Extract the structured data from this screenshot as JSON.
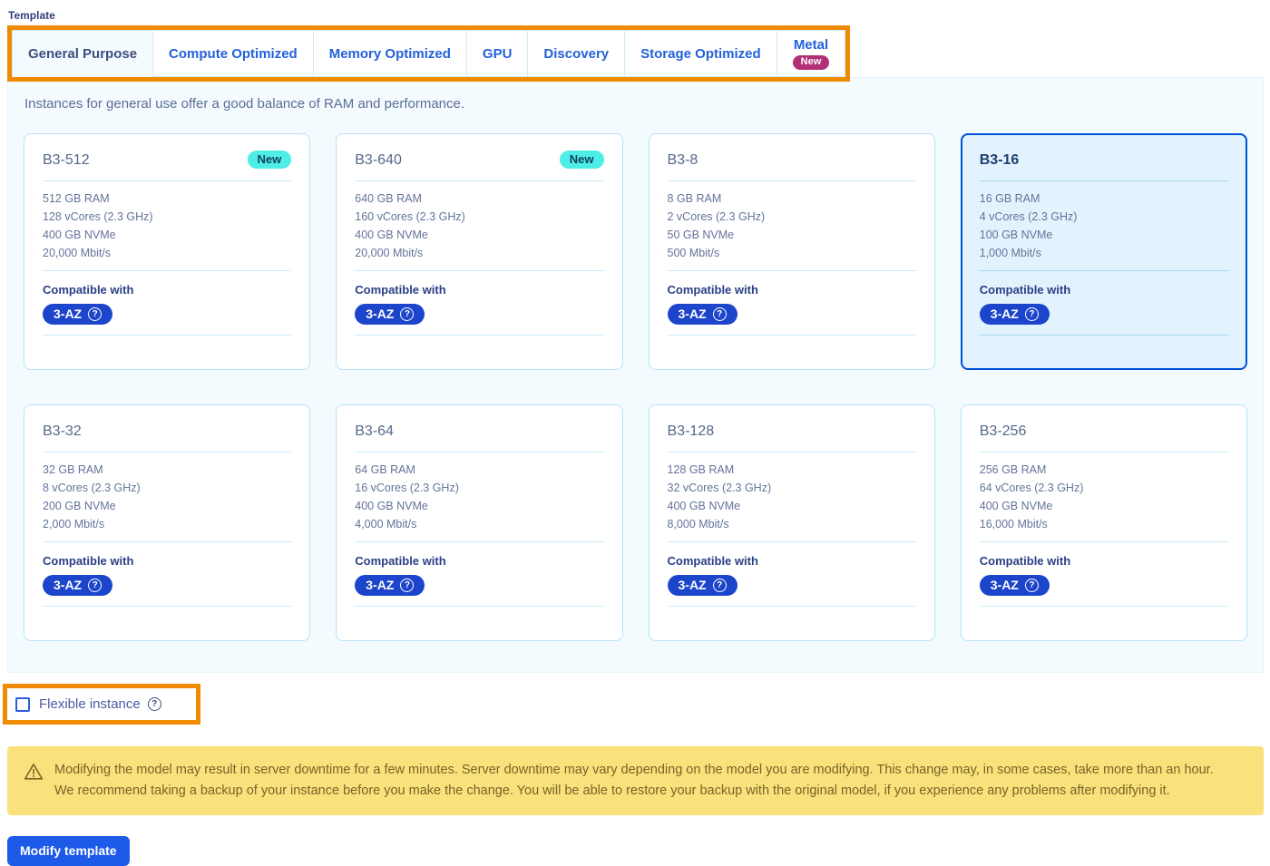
{
  "template_label": "Template",
  "tabs": [
    {
      "label": "General Purpose",
      "active": true,
      "badge": null
    },
    {
      "label": "Compute Optimized",
      "active": false,
      "badge": null
    },
    {
      "label": "Memory Optimized",
      "active": false,
      "badge": null
    },
    {
      "label": "GPU",
      "active": false,
      "badge": null
    },
    {
      "label": "Discovery",
      "active": false,
      "badge": null
    },
    {
      "label": "Storage Optimized",
      "active": false,
      "badge": null
    },
    {
      "label": "Metal",
      "active": false,
      "badge": "New"
    }
  ],
  "panel": {
    "description": "Instances for general use offer a good balance of RAM and performance."
  },
  "cards": [
    {
      "name": "B3-512",
      "badge": "New",
      "selected": false,
      "specs": [
        "512 GB RAM",
        "128 vCores (2.3 GHz)",
        "400 GB NVMe",
        "20,000 Mbit/s"
      ],
      "compatible_label": "Compatible with",
      "az_badge": "3-AZ"
    },
    {
      "name": "B3-640",
      "badge": "New",
      "selected": false,
      "specs": [
        "640 GB RAM",
        "160 vCores (2.3 GHz)",
        "400 GB NVMe",
        "20,000 Mbit/s"
      ],
      "compatible_label": "Compatible with",
      "az_badge": "3-AZ"
    },
    {
      "name": "B3-8",
      "badge": null,
      "selected": false,
      "specs": [
        "8 GB RAM",
        "2 vCores (2.3 GHz)",
        "50 GB NVMe",
        "500 Mbit/s"
      ],
      "compatible_label": "Compatible with",
      "az_badge": "3-AZ"
    },
    {
      "name": "B3-16",
      "badge": null,
      "selected": true,
      "specs": [
        "16 GB RAM",
        "4 vCores (2.3 GHz)",
        "100 GB NVMe",
        "1,000 Mbit/s"
      ],
      "compatible_label": "Compatible with",
      "az_badge": "3-AZ"
    },
    {
      "name": "B3-32",
      "badge": null,
      "selected": false,
      "specs": [
        "32 GB RAM",
        "8 vCores (2.3 GHz)",
        "200 GB NVMe",
        "2,000 Mbit/s"
      ],
      "compatible_label": "Compatible with",
      "az_badge": "3-AZ"
    },
    {
      "name": "B3-64",
      "badge": null,
      "selected": false,
      "specs": [
        "64 GB RAM",
        "16 vCores (2.3 GHz)",
        "400 GB NVMe",
        "4,000 Mbit/s"
      ],
      "compatible_label": "Compatible with",
      "az_badge": "3-AZ"
    },
    {
      "name": "B3-128",
      "badge": null,
      "selected": false,
      "specs": [
        "128 GB RAM",
        "32 vCores (2.3 GHz)",
        "400 GB NVMe",
        "8,000 Mbit/s"
      ],
      "compatible_label": "Compatible with",
      "az_badge": "3-AZ"
    },
    {
      "name": "B3-256",
      "badge": null,
      "selected": false,
      "specs": [
        "256 GB RAM",
        "64 vCores (2.3 GHz)",
        "400 GB NVMe",
        "16,000 Mbit/s"
      ],
      "compatible_label": "Compatible with",
      "az_badge": "3-AZ"
    }
  ],
  "flexible": {
    "label": "Flexible instance",
    "checked": false
  },
  "warning": {
    "line1": "Modifying the model may result in server downtime for a few minutes. Server downtime may vary depending on the model you are modifying. This change may, in some cases, take more than an hour.",
    "line2": "We recommend taking a backup of your instance before you make the change. You will be able to restore your backup with the original model, if you experience any problems after modifying it."
  },
  "modify_button": "Modify template",
  "colors": {
    "annotation_orange": "#f08a00",
    "tab_text": "#2361d9",
    "tab_active_text": "#3e4d7d",
    "panel_bg": "#f3fbff",
    "card_border": "#b8e2f6",
    "selected_border": "#0050d7",
    "selected_bg": "#e2f3fd",
    "new_badge_bg": "#4deee6",
    "metal_new_badge_bg": "#b13078",
    "az_badge_bg": "#1c45cb",
    "warning_bg": "#fbe17b",
    "warning_text": "#76642a",
    "button_bg": "#1e5ae8"
  }
}
